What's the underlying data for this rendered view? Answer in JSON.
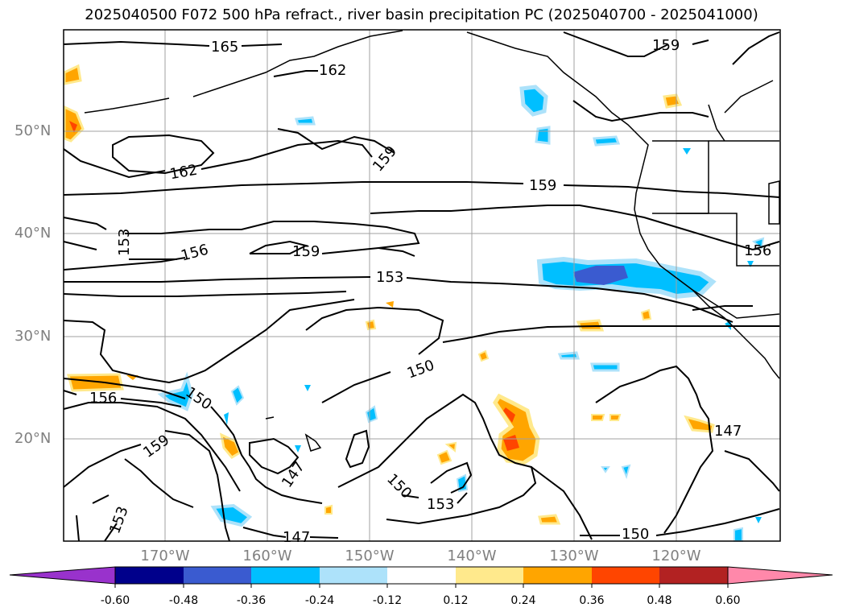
{
  "title": "2025040500 F072 500 hPa refract., river basin precipitation PC (2025040700 - 2025041000)",
  "map": {
    "lat_labels": [
      "50°N",
      "40°N",
      "30°N",
      "20°N"
    ],
    "lon_labels": [
      "170°W",
      "160°W",
      "150°W",
      "140°W",
      "130°W",
      "120°W"
    ],
    "contour_labels": [
      "165",
      "162",
      "159",
      "159",
      "162",
      "159",
      "153",
      "156",
      "159",
      "153",
      "150",
      "156",
      "150",
      "159",
      "147",
      "150",
      "153",
      "147",
      "150",
      "147",
      "156",
      "153"
    ],
    "grid": true
  },
  "colorbar": {
    "tick_labels": [
      "-0.60",
      "-0.48",
      "-0.36",
      "-0.24",
      "-0.12",
      "0.12",
      "0.24",
      "0.36",
      "0.48",
      "0.60"
    ],
    "colors": [
      "#9932cc",
      "#00008b",
      "#3a5bd0",
      "#00bfff",
      "#ade2fa",
      "#ffffff",
      "#ffe98c",
      "#ffa500",
      "#ff4500",
      "#b22222",
      "#ff88aa"
    ]
  }
}
